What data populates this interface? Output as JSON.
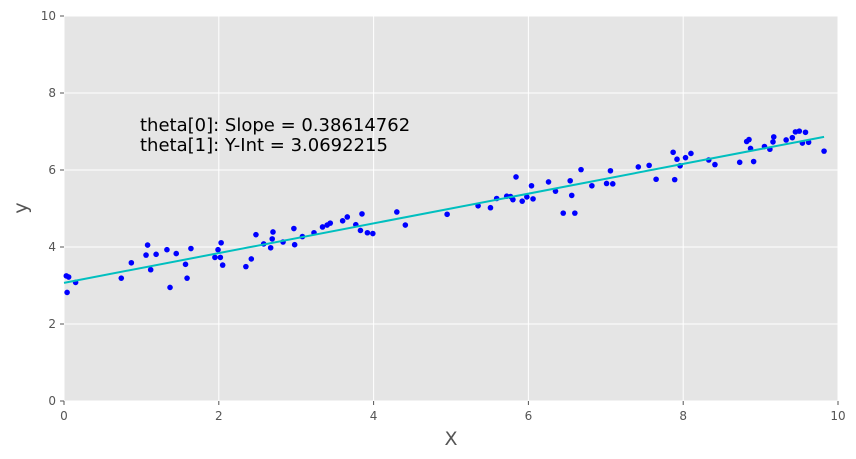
{
  "chart_data": {
    "type": "scatter",
    "title": "",
    "xlabel": "X",
    "ylabel": "y",
    "xlim": [
      0,
      10
    ],
    "ylim": [
      0,
      10
    ],
    "xticks": [
      "0",
      "2",
      "4",
      "6",
      "8",
      "10"
    ],
    "yticks": [
      "0",
      "2",
      "4",
      "6",
      "8",
      "10"
    ],
    "grid": true,
    "annotations": [
      "theta[0]: Slope = 0.38614762",
      "theta[1]: Y-Int = 3.0692215"
    ],
    "colors": {
      "background": "#e5e5e5",
      "grid": "#ffffff",
      "points": "#0000ff",
      "fit_line": "#00bfbf"
    },
    "fit_line": {
      "slope": 0.38614762,
      "intercept": 3.0692215,
      "x_range": [
        0.0,
        9.82
      ]
    },
    "points": [
      [
        0.03,
        3.25
      ],
      [
        0.06,
        3.22
      ],
      [
        0.04,
        2.82
      ],
      [
        0.15,
        3.08
      ],
      [
        0.74,
        3.19
      ],
      [
        0.87,
        3.59
      ],
      [
        1.06,
        3.79
      ],
      [
        1.08,
        4.05
      ],
      [
        1.12,
        3.41
      ],
      [
        1.19,
        3.81
      ],
      [
        1.33,
        3.93
      ],
      [
        1.37,
        2.95
      ],
      [
        1.45,
        3.83
      ],
      [
        1.57,
        3.55
      ],
      [
        1.59,
        3.19
      ],
      [
        1.64,
        3.96
      ],
      [
        1.95,
        3.73
      ],
      [
        1.99,
        3.93
      ],
      [
        2.02,
        3.73
      ],
      [
        2.03,
        4.11
      ],
      [
        2.05,
        3.53
      ],
      [
        2.35,
        3.49
      ],
      [
        2.42,
        3.69
      ],
      [
        2.48,
        4.32
      ],
      [
        2.58,
        4.08
      ],
      [
        2.67,
        3.98
      ],
      [
        2.69,
        4.21
      ],
      [
        2.7,
        4.39
      ],
      [
        2.83,
        4.13
      ],
      [
        2.97,
        4.48
      ],
      [
        2.98,
        4.06
      ],
      [
        3.08,
        4.27
      ],
      [
        3.23,
        4.37
      ],
      [
        3.34,
        4.52
      ],
      [
        3.4,
        4.57
      ],
      [
        3.44,
        4.62
      ],
      [
        3.6,
        4.68
      ],
      [
        3.66,
        4.78
      ],
      [
        3.77,
        4.58
      ],
      [
        3.83,
        4.43
      ],
      [
        3.85,
        4.86
      ],
      [
        3.92,
        4.37
      ],
      [
        3.99,
        4.35
      ],
      [
        4.3,
        4.91
      ],
      [
        4.41,
        4.57
      ],
      [
        4.95,
        4.85
      ],
      [
        5.35,
        5.07
      ],
      [
        5.51,
        5.02
      ],
      [
        5.59,
        5.26
      ],
      [
        5.72,
        5.32
      ],
      [
        5.77,
        5.31
      ],
      [
        5.8,
        5.23
      ],
      [
        5.84,
        5.82
      ],
      [
        5.92,
        5.19
      ],
      [
        5.98,
        5.3
      ],
      [
        6.04,
        5.59
      ],
      [
        6.06,
        5.25
      ],
      [
        6.26,
        5.69
      ],
      [
        6.35,
        5.45
      ],
      [
        6.45,
        4.88
      ],
      [
        6.54,
        5.72
      ],
      [
        6.56,
        5.34
      ],
      [
        6.6,
        4.88
      ],
      [
        6.68,
        6.01
      ],
      [
        6.82,
        5.59
      ],
      [
        7.01,
        5.65
      ],
      [
        7.06,
        5.98
      ],
      [
        7.09,
        5.64
      ],
      [
        7.42,
        6.08
      ],
      [
        7.56,
        6.12
      ],
      [
        7.65,
        5.76
      ],
      [
        7.87,
        6.46
      ],
      [
        7.89,
        5.75
      ],
      [
        7.92,
        6.28
      ],
      [
        7.96,
        6.11
      ],
      [
        8.03,
        6.32
      ],
      [
        8.1,
        6.43
      ],
      [
        8.33,
        6.26
      ],
      [
        8.41,
        6.14
      ],
      [
        8.73,
        6.2
      ],
      [
        8.82,
        6.74
      ],
      [
        8.85,
        6.79
      ],
      [
        8.87,
        6.56
      ],
      [
        8.91,
        6.22
      ],
      [
        9.05,
        6.61
      ],
      [
        9.12,
        6.54
      ],
      [
        9.16,
        6.73
      ],
      [
        9.17,
        6.86
      ],
      [
        9.33,
        6.78
      ],
      [
        9.41,
        6.84
      ],
      [
        9.45,
        6.99
      ],
      [
        9.5,
        7.01
      ],
      [
        9.54,
        6.7
      ],
      [
        9.58,
        6.98
      ],
      [
        9.62,
        6.72
      ],
      [
        9.82,
        6.49
      ]
    ]
  }
}
